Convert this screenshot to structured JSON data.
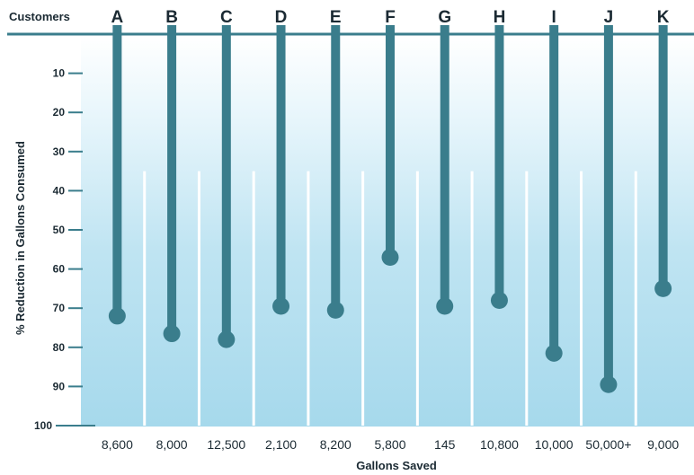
{
  "chart_data": {
    "type": "lollipop",
    "header_label": "Customers",
    "categories": [
      "A",
      "B",
      "C",
      "D",
      "E",
      "F",
      "G",
      "H",
      "I",
      "J",
      "K"
    ],
    "values": [
      72,
      76.5,
      78,
      69.5,
      70.5,
      57,
      69.5,
      68,
      81.5,
      89.5,
      65
    ],
    "gallons_saved": [
      "8,600",
      "8,000",
      "12,500",
      "2,100",
      "8,200",
      "5,800",
      "145",
      "10,800",
      "10,000",
      "50,000+",
      "9,000"
    ],
    "ylabel": "% Reduction in Gallons Consumed",
    "xlabel": "Gallons Saved",
    "yticks": [
      10,
      20,
      30,
      40,
      50,
      60,
      70,
      80,
      90,
      100
    ],
    "ylim": [
      0,
      100
    ],
    "y_direction": "downward",
    "colors": {
      "stem": "#3a7d8c",
      "header_rule": "#3a7d8c",
      "gradient_top": "#ffffff",
      "gradient_bottom": "#a6d9ec",
      "separator": "#ffffff"
    }
  }
}
